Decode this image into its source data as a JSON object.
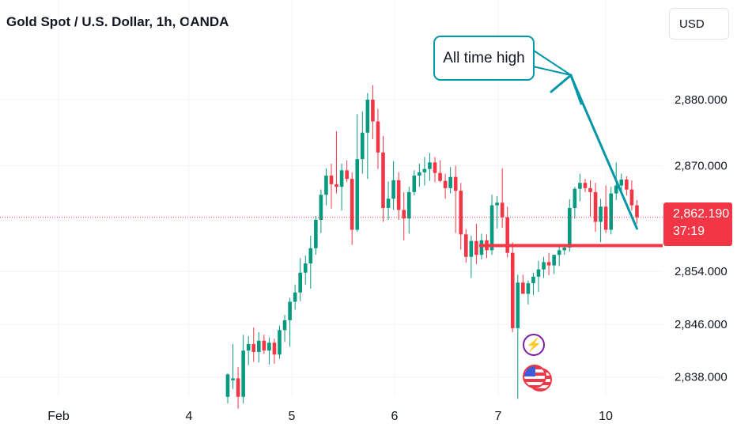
{
  "title": "Gold Spot / U.S. Dollar, 1h, OANDA",
  "currency": "USD",
  "current_price": {
    "value": "2,862.190",
    "countdown": "37:19"
  },
  "annotation": {
    "text": "All time high"
  },
  "colors": {
    "up": "#089981",
    "down": "#f23645",
    "callout": "#0097a7",
    "gridline": "#f0f3fa"
  },
  "icons": [
    "lightning-icon",
    "us-flag-icon"
  ],
  "chart_data": {
    "type": "candlestick",
    "title": "Gold Spot / U.S. Dollar, 1h, OANDA",
    "x_ticks": [
      "Feb",
      "4",
      "5",
      "6",
      "7",
      "10"
    ],
    "y_ticks": [
      "2,880.000",
      "2,870.000",
      "2,854.000",
      "2,846.000",
      "2,838.000"
    ],
    "y_tick_values": [
      2880,
      2870,
      2854,
      2846,
      2838
    ],
    "support_level": 2857.9,
    "current_price": 2862.19,
    "candles": [
      [
        2835.0,
        2838.6,
        2834.0,
        2838.4
      ],
      [
        2837.5,
        2843.0,
        2836.2,
        2837.8
      ],
      [
        2837.8,
        2839.5,
        2833.2,
        2835.0
      ],
      [
        2835.0,
        2844.4,
        2834.0,
        2842.0
      ],
      [
        2842.0,
        2844.2,
        2839.8,
        2843.0
      ],
      [
        2843.0,
        2845.5,
        2840.3,
        2841.8
      ],
      [
        2841.8,
        2844.8,
        2840.2,
        2843.5
      ],
      [
        2843.5,
        2844.4,
        2841.5,
        2842.0
      ],
      [
        2842.0,
        2844.0,
        2839.9,
        2843.2
      ],
      [
        2843.2,
        2843.8,
        2840.0,
        2841.4
      ],
      [
        2841.4,
        2845.8,
        2840.8,
        2845.1
      ],
      [
        2845.1,
        2847.4,
        2843.3,
        2846.6
      ],
      [
        2846.6,
        2850.0,
        2842.6,
        2849.4
      ],
      [
        2849.4,
        2852.0,
        2848.2,
        2850.8
      ],
      [
        2850.8,
        2856.0,
        2849.5,
        2853.8
      ],
      [
        2853.8,
        2856.4,
        2852.0,
        2855.2
      ],
      [
        2855.2,
        2859.4,
        2851.4,
        2857.5
      ],
      [
        2857.5,
        2862.4,
        2856.5,
        2861.8
      ],
      [
        2861.8,
        2866.4,
        2859.8,
        2865.6
      ],
      [
        2865.6,
        2869.6,
        2864.0,
        2868.5
      ],
      [
        2868.5,
        2870.3,
        2863.5,
        2867.2
      ],
      [
        2867.2,
        2875.2,
        2865.8,
        2866.8
      ],
      [
        2866.8,
        2870.3,
        2863.2,
        2869.3
      ],
      [
        2869.3,
        2870.8,
        2867.5,
        2868.0
      ],
      [
        2868.0,
        2869.0,
        2858.0,
        2860.3
      ],
      [
        2860.3,
        2877.8,
        2860.0,
        2871.0
      ],
      [
        2871.0,
        2878.2,
        2868.8,
        2875.0
      ],
      [
        2875.0,
        2881.0,
        2868.0,
        2880.0
      ],
      [
        2880.0,
        2882.2,
        2874.0,
        2876.7
      ],
      [
        2876.7,
        2878.6,
        2869.5,
        2872.0
      ],
      [
        2872.0,
        2874.5,
        2861.5,
        2863.6
      ],
      [
        2863.6,
        2867.6,
        2861.8,
        2865.0
      ],
      [
        2865.0,
        2870.7,
        2863.3,
        2867.8
      ],
      [
        2867.8,
        2869.0,
        2861.8,
        2863.3
      ],
      [
        2863.3,
        2866.0,
        2858.7,
        2862.0
      ],
      [
        2862.0,
        2866.8,
        2859.7,
        2866.0
      ],
      [
        2866.0,
        2869.3,
        2865.5,
        2868.5
      ],
      [
        2868.5,
        2870.3,
        2866.8,
        2869.0
      ],
      [
        2869.0,
        2871.3,
        2867.0,
        2869.5
      ],
      [
        2869.5,
        2871.9,
        2867.7,
        2870.5
      ],
      [
        2870.5,
        2871.3,
        2867.5,
        2868.9
      ],
      [
        2868.9,
        2870.8,
        2867.5,
        2867.7
      ],
      [
        2867.7,
        2868.8,
        2865.0,
        2866.6
      ],
      [
        2866.6,
        2869.8,
        2865.8,
        2868.3
      ],
      [
        2868.3,
        2870.0,
        2859.8,
        2866.2
      ],
      [
        2866.2,
        2867.4,
        2857.3,
        2859.6
      ],
      [
        2859.6,
        2860.4,
        2855.3,
        2856.2
      ],
      [
        2856.2,
        2859.4,
        2853.0,
        2858.6
      ],
      [
        2858.6,
        2861.2,
        2855.1,
        2856.5
      ],
      [
        2856.5,
        2859.7,
        2855.8,
        2858.7
      ],
      [
        2858.7,
        2859.6,
        2856.0,
        2857.2
      ],
      [
        2857.2,
        2865.6,
        2856.5,
        2864.0
      ],
      [
        2864.0,
        2865.4,
        2860.5,
        2864.4
      ],
      [
        2864.4,
        2869.6,
        2860.6,
        2862.2
      ],
      [
        2862.2,
        2863.8,
        2856.1,
        2856.8
      ],
      [
        2856.8,
        2858.4,
        2844.8,
        2845.4
      ],
      [
        2845.4,
        2853.5,
        2834.7,
        2852.3
      ],
      [
        2852.3,
        2853.5,
        2851.0,
        2850.6
      ],
      [
        2850.6,
        2852.6,
        2849.0,
        2852.2
      ],
      [
        2852.2,
        2853.8,
        2850.4,
        2853.2
      ],
      [
        2853.2,
        2855.6,
        2850.9,
        2854.3
      ],
      [
        2854.3,
        2856.2,
        2853.0,
        2855.4
      ],
      [
        2855.4,
        2856.8,
        2853.4,
        2854.9
      ],
      [
        2854.9,
        2856.5,
        2853.6,
        2856.5
      ],
      [
        2856.5,
        2857.7,
        2854.8,
        2857.2
      ],
      [
        2857.2,
        2857.8,
        2856.5,
        2857.6
      ],
      [
        2857.6,
        2864.9,
        2857.0,
        2863.6
      ],
      [
        2863.6,
        2866.8,
        2862.0,
        2866.5
      ],
      [
        2866.5,
        2868.8,
        2864.6,
        2867.4
      ],
      [
        2867.4,
        2868.0,
        2866.0,
        2866.6
      ],
      [
        2866.6,
        2867.8,
        2862.3,
        2866.0
      ],
      [
        2866.0,
        2867.4,
        2860.0,
        2861.5
      ],
      [
        2861.5,
        2865.0,
        2858.4,
        2863.8
      ],
      [
        2863.8,
        2867.0,
        2859.8,
        2860.3
      ],
      [
        2860.3,
        2866.8,
        2859.6,
        2865.8
      ],
      [
        2865.8,
        2870.5,
        2864.8,
        2867.0
      ],
      [
        2867.0,
        2868.8,
        2866.2,
        2867.9
      ],
      [
        2867.9,
        2868.4,
        2865.5,
        2866.4
      ],
      [
        2866.4,
        2867.8,
        2863.2,
        2864.0
      ],
      [
        2864.0,
        2864.8,
        2861.2,
        2862.2
      ]
    ]
  }
}
